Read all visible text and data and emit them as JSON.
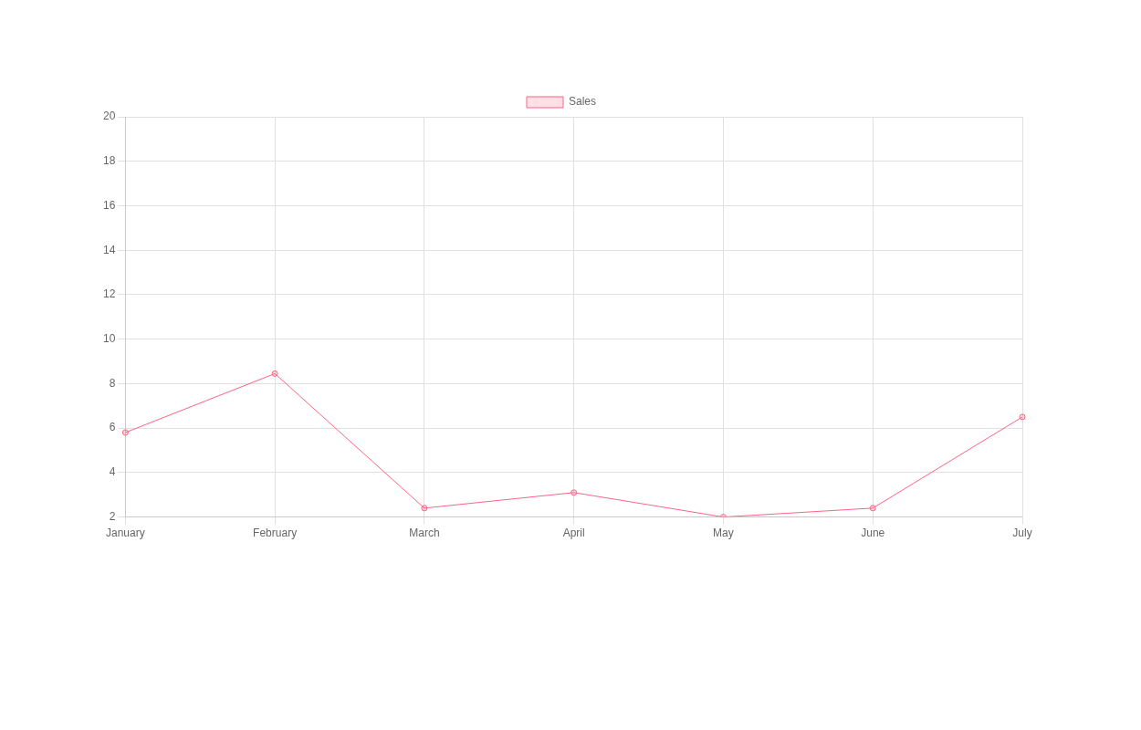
{
  "chart_data": {
    "type": "line",
    "categories": [
      "January",
      "February",
      "March",
      "April",
      "May",
      "June",
      "July"
    ],
    "series": [
      {
        "name": "Sales",
        "color": "#ff6384",
        "values": [
          5.8,
          8.45,
          2.4,
          3.1,
          2.0,
          2.4,
          6.5
        ]
      }
    ],
    "ylim": [
      2,
      20
    ],
    "yticks": [
      2,
      4,
      6,
      8,
      10,
      12,
      14,
      16,
      18,
      20
    ],
    "grid": true,
    "legend": "top",
    "marker": "circle",
    "line_style": "solid"
  }
}
